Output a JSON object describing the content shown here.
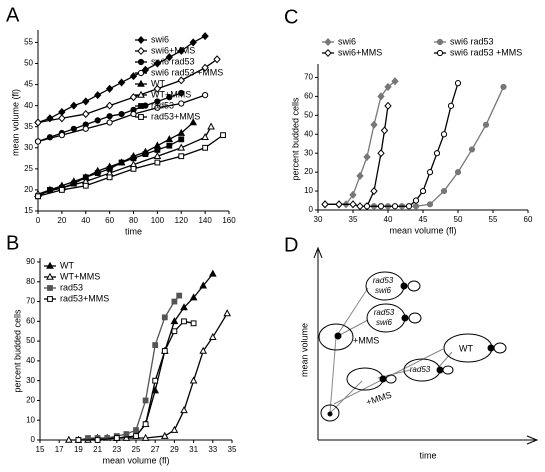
{
  "panel_labels": [
    "A",
    "B",
    "C",
    "D"
  ],
  "chart_data": [
    {
      "type": "line",
      "xlabel": "time",
      "ylabel": "mean volume (fl)",
      "xlim": [
        0,
        160
      ],
      "xticks": [
        0,
        20,
        40,
        60,
        80,
        100,
        120,
        140,
        160
      ],
      "ylim": [
        15,
        57
      ],
      "yticks": [
        15,
        20,
        25,
        30,
        35,
        40,
        45,
        50,
        55
      ],
      "legend": "upper right",
      "series": [
        {
          "name": "swi6",
          "marker": "diamond",
          "filled": true,
          "color": "#000",
          "x": [
            0,
            10,
            20,
            30,
            40,
            50,
            60,
            70,
            80,
            90,
            100,
            110,
            120,
            130,
            140
          ],
          "values": [
            36,
            37,
            38.5,
            40,
            41,
            42.5,
            44,
            45.5,
            47,
            48.5,
            50,
            51.5,
            53,
            55,
            56.5
          ]
        },
        {
          "name": "swi6+MMS",
          "marker": "diamond",
          "filled": false,
          "color": "#000",
          "x": [
            0,
            20,
            40,
            60,
            80,
            100,
            120,
            140,
            150
          ],
          "values": [
            36,
            37,
            38,
            40,
            42,
            44,
            46,
            49,
            51
          ]
        },
        {
          "name": "swi6 rad53",
          "marker": "circle",
          "filled": true,
          "color": "#000",
          "x": [
            0,
            10,
            20,
            30,
            40,
            50,
            60,
            70,
            80,
            90,
            100,
            110,
            120
          ],
          "values": [
            31.5,
            32.5,
            33.5,
            34.5,
            35.5,
            36.5,
            37.5,
            38,
            39,
            40,
            41,
            42,
            43
          ]
        },
        {
          "name": "swi6 rad53 +MMS",
          "marker": "circle",
          "filled": false,
          "color": "#000",
          "x": [
            0,
            20,
            40,
            60,
            80,
            100,
            120,
            140
          ],
          "values": [
            31.5,
            33,
            34.5,
            36,
            38,
            39.5,
            40.5,
            42.5
          ]
        },
        {
          "name": "WT",
          "marker": "triangle",
          "filled": true,
          "color": "#000",
          "x": [
            0,
            10,
            20,
            30,
            40,
            50,
            60,
            70,
            80,
            90,
            100,
            110,
            120,
            130
          ],
          "values": [
            19,
            20,
            21,
            22,
            23,
            24.5,
            25.5,
            26.5,
            28,
            29,
            30.5,
            32,
            33.5,
            36
          ]
        },
        {
          "name": "WT+MMS",
          "marker": "triangle",
          "filled": false,
          "color": "#000",
          "x": [
            0,
            20,
            40,
            60,
            80,
            100,
            120,
            140,
            145
          ],
          "values": [
            19,
            20.5,
            22,
            24,
            26,
            28,
            30,
            32.5,
            35
          ]
        },
        {
          "name": "rad53",
          "marker": "square",
          "filled": true,
          "color": "#000",
          "x": [
            0,
            10,
            20,
            30,
            40,
            50,
            60,
            70,
            80,
            90,
            100,
            110,
            120
          ],
          "values": [
            18.5,
            20,
            20.5,
            21.5,
            23,
            24,
            25,
            26.5,
            27.5,
            28.5,
            29.5,
            30.5,
            32
          ]
        },
        {
          "name": "rad53+MMS",
          "marker": "square",
          "filled": false,
          "color": "#000",
          "x": [
            0,
            20,
            40,
            60,
            80,
            100,
            120,
            140,
            155
          ],
          "values": [
            18.5,
            20,
            21,
            23,
            25,
            26.5,
            28,
            30,
            33
          ]
        }
      ]
    },
    {
      "type": "line",
      "xlabel": "mean volume (fl)",
      "ylabel": "percent budded cells",
      "xlim": [
        15,
        35
      ],
      "xticks": [
        15,
        17,
        19,
        21,
        23,
        25,
        27,
        29,
        31,
        33,
        35
      ],
      "ylim": [
        0,
        90
      ],
      "yticks": [
        0,
        10,
        20,
        30,
        40,
        50,
        60,
        70,
        80,
        90
      ],
      "legend": "upper left",
      "series": [
        {
          "name": "WT",
          "marker": "triangle",
          "filled": true,
          "color": "#000",
          "x": [
            19,
            21,
            23,
            25,
            26,
            27,
            28,
            29,
            30,
            31,
            32,
            33
          ],
          "values": [
            0,
            1,
            1,
            2,
            8,
            25,
            45,
            60,
            67,
            72,
            78,
            84
          ]
        },
        {
          "name": "WT+MMS",
          "marker": "triangle",
          "filled": false,
          "color": "#000",
          "x": [
            18,
            20,
            22,
            24,
            26,
            28,
            29,
            30,
            31,
            32,
            33,
            34.5
          ],
          "values": [
            0,
            0,
            1,
            1,
            1,
            2,
            5,
            15,
            30,
            45,
            52,
            64
          ]
        },
        {
          "name": "rad53",
          "marker": "square",
          "filled": true,
          "color": "#555",
          "x": [
            19,
            20,
            21,
            22,
            23,
            24,
            25,
            26,
            27,
            28,
            29,
            29.5
          ],
          "values": [
            0,
            1,
            1,
            1,
            2,
            3,
            5,
            20,
            48,
            62,
            70,
            73
          ]
        },
        {
          "name": "rad53+MMS",
          "marker": "square",
          "filled": false,
          "color": "#000",
          "x": [
            19,
            21,
            23,
            25,
            26,
            27,
            28,
            29,
            30,
            31
          ],
          "values": [
            0,
            0,
            1,
            2,
            8,
            30,
            45,
            55,
            60,
            59
          ]
        }
      ]
    },
    {
      "type": "line",
      "xlabel": "mean volume (fl)",
      "ylabel": "percent budded cells",
      "xlim": [
        30,
        60
      ],
      "xticks": [
        30,
        35,
        40,
        45,
        50,
        55,
        60
      ],
      "ylim": [
        0,
        75
      ],
      "yticks": [
        0,
        10,
        20,
        30,
        40,
        50,
        60,
        70
      ],
      "legend": "top",
      "series": [
        {
          "name": "swi6",
          "marker": "diamond",
          "filled": true,
          "color": "#777",
          "x": [
            31,
            33,
            34,
            35,
            36,
            37,
            38,
            39,
            40,
            41
          ],
          "values": [
            3,
            3,
            3,
            8,
            18,
            28,
            45,
            60,
            65,
            68
          ]
        },
        {
          "name": "swi6+MMS",
          "marker": "diamond",
          "filled": false,
          "color": "#000",
          "x": [
            31,
            33,
            35,
            36,
            37,
            38,
            39,
            39.5,
            40
          ],
          "values": [
            3,
            3,
            3,
            2,
            2,
            10,
            30,
            42,
            55
          ]
        },
        {
          "name": "swi6 rad53",
          "marker": "circle",
          "filled": true,
          "color": "#777",
          "x": [
            38,
            40,
            42,
            44,
            46,
            48,
            50,
            52,
            54,
            56.5
          ],
          "values": [
            2,
            2,
            2,
            2,
            3,
            10,
            20,
            32,
            45,
            65
          ]
        },
        {
          "name": "swi6 rad53 +MMS",
          "marker": "circle",
          "filled": false,
          "color": "#000",
          "x": [
            37,
            39,
            41,
            43,
            44,
            45,
            46,
            47,
            48,
            49,
            50
          ],
          "values": [
            2,
            2,
            2,
            2,
            5,
            10,
            20,
            30,
            40,
            55,
            67
          ]
        }
      ]
    }
  ],
  "diagram": {
    "ylabel": "mean volume",
    "xlabel": "time",
    "labels": [
      "rad53",
      "swi6",
      "rad53",
      "swi6",
      "+MMS",
      "WT",
      "rad53",
      "+MMS"
    ]
  }
}
